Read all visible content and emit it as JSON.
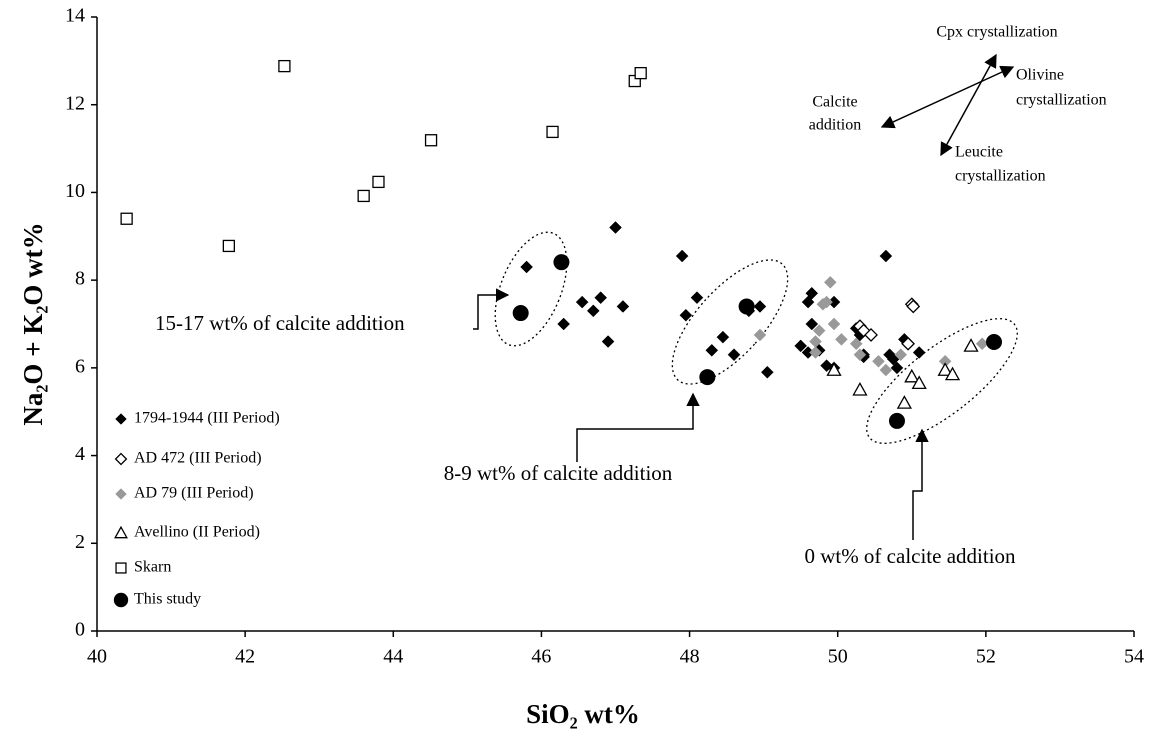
{
  "chart_data": {
    "type": "scatter",
    "x_label": "SiO₂ wt%",
    "y_label": "Na₂O + K₂O wt%",
    "xlim": [
      40,
      54
    ],
    "ylim": [
      0,
      14
    ],
    "xticks": [
      40,
      42,
      44,
      46,
      48,
      50,
      52,
      54
    ],
    "yticks": [
      0,
      2,
      4,
      6,
      8,
      10,
      12,
      14
    ],
    "grid": false,
    "legend": "lower left",
    "series": [
      {
        "name": "1794-1944 (III Period)",
        "marker": "diamond",
        "color": "#000000",
        "x": [
          45.8,
          46.3,
          46.55,
          46.7,
          46.8,
          46.9,
          47.0,
          47.1,
          47.9,
          47.95,
          48.1,
          48.3,
          48.45,
          48.6,
          48.8,
          48.95,
          49.05,
          49.5,
          49.6,
          49.6,
          49.65,
          49.65,
          49.75,
          49.85,
          49.95,
          49.95,
          50.25,
          50.3,
          50.35,
          50.35,
          50.65,
          50.7,
          50.75,
          50.8,
          50.9,
          51.1
        ],
        "y": [
          8.3,
          7.0,
          7.5,
          7.3,
          7.6,
          6.6,
          9.2,
          7.4,
          8.55,
          7.2,
          7.6,
          6.4,
          6.7,
          6.3,
          7.3,
          7.4,
          5.9,
          6.5,
          6.35,
          7.5,
          7.7,
          7.0,
          6.4,
          6.05,
          7.5,
          6.0,
          6.9,
          6.75,
          6.25,
          6.3,
          8.55,
          6.3,
          6.2,
          6.0,
          6.65,
          6.35
        ]
      },
      {
        "name": "AD 472 (III Period)",
        "marker": "diamond-open",
        "color": "#000000",
        "x": [
          50.3,
          50.35,
          50.45,
          50.95,
          51.0,
          51.02
        ],
        "y": [
          6.95,
          6.85,
          6.75,
          6.55,
          7.45,
          7.4
        ]
      },
      {
        "name": "AD 79 (III Period)",
        "marker": "diamond",
        "color": "#999999",
        "x": [
          48.95,
          49.7,
          49.7,
          49.75,
          49.8,
          49.85,
          49.9,
          49.95,
          50.05,
          50.25,
          50.3,
          50.55,
          50.65,
          50.85,
          51.45,
          51.95
        ],
        "y": [
          6.75,
          6.6,
          6.35,
          6.85,
          7.45,
          7.5,
          7.95,
          7.0,
          6.65,
          6.55,
          6.3,
          6.15,
          5.95,
          6.3,
          6.15,
          6.55
        ]
      },
      {
        "name": "Avellino (II Period)",
        "marker": "triangle-open",
        "color": "#000000",
        "x": [
          49.95,
          50.3,
          50.9,
          51.0,
          51.1,
          51.45,
          51.55,
          51.8
        ],
        "y": [
          5.95,
          5.5,
          5.2,
          5.8,
          5.65,
          5.95,
          5.85,
          6.5
        ]
      },
      {
        "name": "Skarn",
        "marker": "square-open",
        "color": "#000000",
        "x": [
          40.4,
          41.78,
          42.53,
          43.6,
          43.8,
          44.51,
          46.15,
          47.26,
          47.34
        ],
        "y": [
          9.4,
          8.78,
          12.88,
          9.92,
          10.24,
          11.19,
          11.38,
          12.54,
          12.72
        ]
      },
      {
        "name": "This study",
        "marker": "circle",
        "color": "#000000",
        "x": [
          45.72,
          46.27,
          48.24,
          48.77,
          50.8,
          52.11
        ],
        "y": [
          7.25,
          8.41,
          5.79,
          7.4,
          4.79,
          6.59
        ]
      }
    ],
    "annotations": [
      "15-17 wt% of calcite addition",
      "8-9 wt% of calcite addition",
      "0 wt% of calcite addition",
      "Cpx crystallization",
      [
        "Olivine",
        "crystallization"
      ],
      [
        "Calcite",
        "addition"
      ],
      [
        "Leucite",
        "crystallization"
      ]
    ]
  }
}
